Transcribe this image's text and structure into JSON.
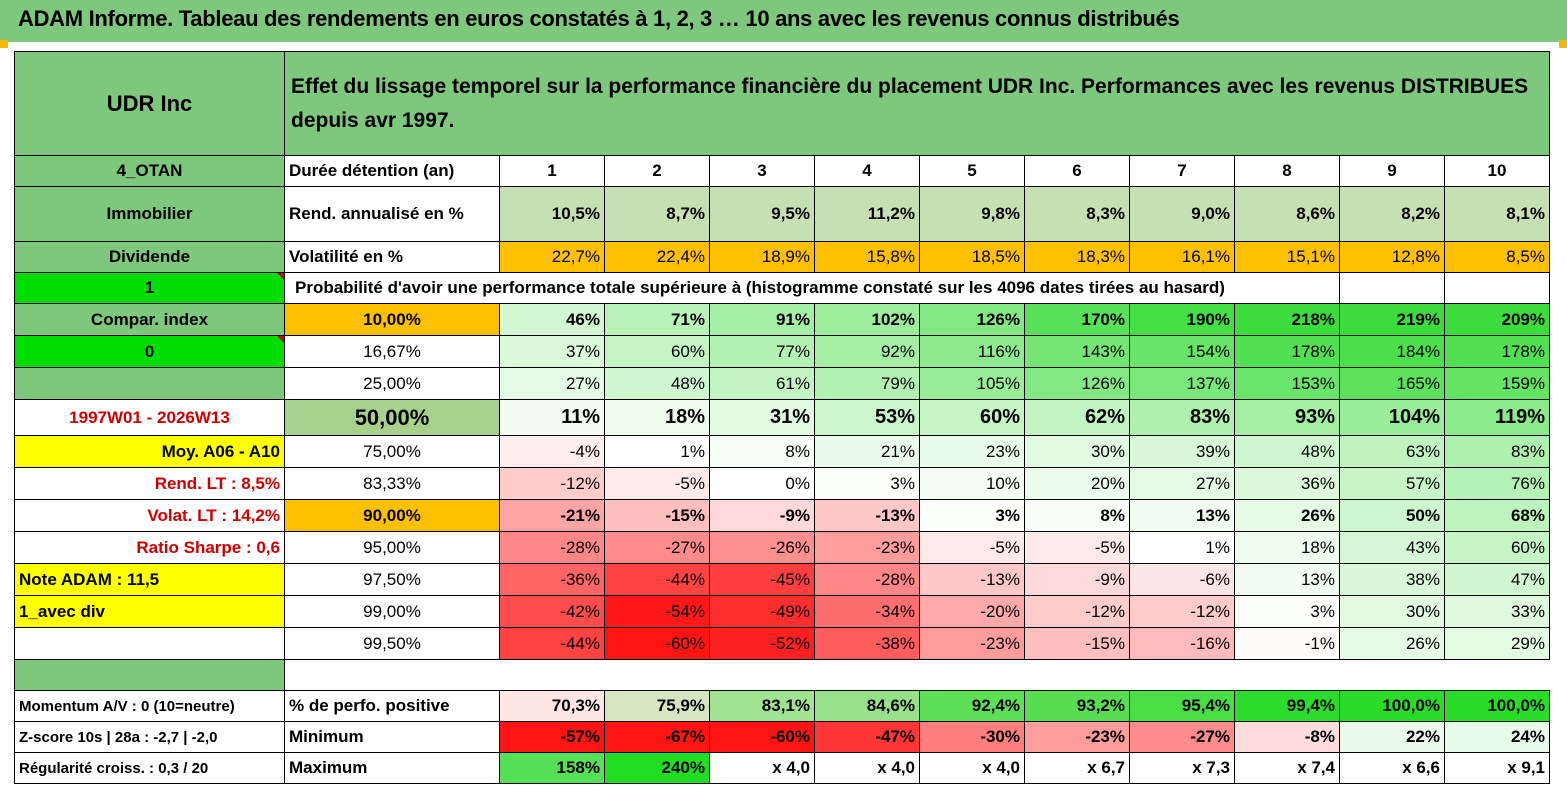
{
  "title": "ADAM Informe. Tableau des rendements en euros constatés à 1, 2, 3 … 10 ans avec les revenus connus distribués",
  "header": {
    "name": "UDR Inc",
    "description": "Effet du lissage temporel sur la performance financière du placement UDR Inc. Performances avec les revenus DISTRIBUES depuis avr 1997."
  },
  "left": {
    "code": "4_OTAN",
    "sector": "Immobilier",
    "type": "Dividende",
    "val1": "1",
    "compar": "Compar. index",
    "val0": "0",
    "period": "1997W01 - 2026W13",
    "moy": "Moy. A06 - A10",
    "rend": "Rend. LT :   8,5%",
    "volat": "Volat. LT :   14,2%",
    "sharpe": "Ratio Sharpe :    0,6",
    "note": "Note ADAM : 11,5",
    "avec": "1_avec div",
    "momentum": "Momentum A/V : 0 (10=neutre)",
    "zscore": "Z-score 10s | 28a : -2,7 | -2,0",
    "regularite": "Régularité croiss. : 0,3 / 20"
  },
  "labels": {
    "duree": "Durée détention (an)",
    "rend": "Rend. annualisé en %",
    "vol": "Volatilité en %",
    "proba": "Probabilité d'avoir une performance totale supérieure à (histogramme constaté sur les 4096 dates tirées au hasard)",
    "perfpos": "% de perfo. positive",
    "min": "Minimum",
    "max": "Maximum"
  },
  "years": [
    "1",
    "2",
    "3",
    "4",
    "5",
    "6",
    "7",
    "8",
    "9",
    "10"
  ],
  "rend": [
    "10,5%",
    "8,7%",
    "9,5%",
    "11,2%",
    "9,8%",
    "8,3%",
    "9,0%",
    "8,6%",
    "8,2%",
    "8,1%"
  ],
  "vol": [
    "22,7%",
    "22,4%",
    "18,9%",
    "15,8%",
    "18,5%",
    "18,3%",
    "16,1%",
    "15,1%",
    "12,8%",
    "8,5%"
  ],
  "proba_rows": [
    {
      "p": "10,00%",
      "v": [
        "46%",
        "71%",
        "91%",
        "102%",
        "126%",
        "170%",
        "190%",
        "218%",
        "219%",
        "209%"
      ]
    },
    {
      "p": "16,67%",
      "v": [
        "37%",
        "60%",
        "77%",
        "92%",
        "116%",
        "143%",
        "154%",
        "178%",
        "184%",
        "178%"
      ]
    },
    {
      "p": "25,00%",
      "v": [
        "27%",
        "48%",
        "61%",
        "79%",
        "105%",
        "126%",
        "137%",
        "153%",
        "165%",
        "159%"
      ]
    },
    {
      "p": "50,00%",
      "v": [
        "11%",
        "18%",
        "31%",
        "53%",
        "60%",
        "62%",
        "83%",
        "93%",
        "104%",
        "119%"
      ]
    },
    {
      "p": "75,00%",
      "v": [
        "-4%",
        "1%",
        "8%",
        "21%",
        "23%",
        "30%",
        "39%",
        "48%",
        "63%",
        "83%"
      ]
    },
    {
      "p": "83,33%",
      "v": [
        "-12%",
        "-5%",
        "0%",
        "3%",
        "10%",
        "20%",
        "27%",
        "36%",
        "57%",
        "76%"
      ]
    },
    {
      "p": "90,00%",
      "v": [
        "-21%",
        "-15%",
        "-9%",
        "-13%",
        "3%",
        "8%",
        "13%",
        "26%",
        "50%",
        "68%"
      ]
    },
    {
      "p": "95,00%",
      "v": [
        "-28%",
        "-27%",
        "-26%",
        "-23%",
        "-5%",
        "-5%",
        "1%",
        "18%",
        "43%",
        "60%"
      ]
    },
    {
      "p": "97,50%",
      "v": [
        "-36%",
        "-44%",
        "-45%",
        "-28%",
        "-13%",
        "-9%",
        "-6%",
        "13%",
        "38%",
        "47%"
      ]
    },
    {
      "p": "99,00%",
      "v": [
        "-42%",
        "-54%",
        "-49%",
        "-34%",
        "-20%",
        "-12%",
        "-12%",
        "3%",
        "30%",
        "33%"
      ]
    },
    {
      "p": "99,50%",
      "v": [
        "-44%",
        "-60%",
        "-52%",
        "-38%",
        "-23%",
        "-15%",
        "-16%",
        "-1%",
        "26%",
        "29%"
      ]
    }
  ],
  "perfpos": [
    "70,3%",
    "75,9%",
    "83,1%",
    "84,6%",
    "92,4%",
    "93,2%",
    "95,4%",
    "99,4%",
    "100,0%",
    "100,0%"
  ],
  "minimum": [
    "-57%",
    "-67%",
    "-60%",
    "-47%",
    "-30%",
    "-23%",
    "-27%",
    "-8%",
    "22%",
    "24%"
  ],
  "maximum": [
    "158%",
    "240%",
    "x 4,0",
    "x 4,0",
    "x 4,0",
    "x 6,7",
    "x 7,3",
    "x 7,4",
    "x 6,6",
    "x 9,1"
  ],
  "colors": {
    "header_green": "#7ec87e",
    "bright_green": "#00dd00",
    "yellow": "#ffff00",
    "orange": "#ffc000",
    "light_green": "#c6e0b4",
    "red": "#ff0000"
  }
}
